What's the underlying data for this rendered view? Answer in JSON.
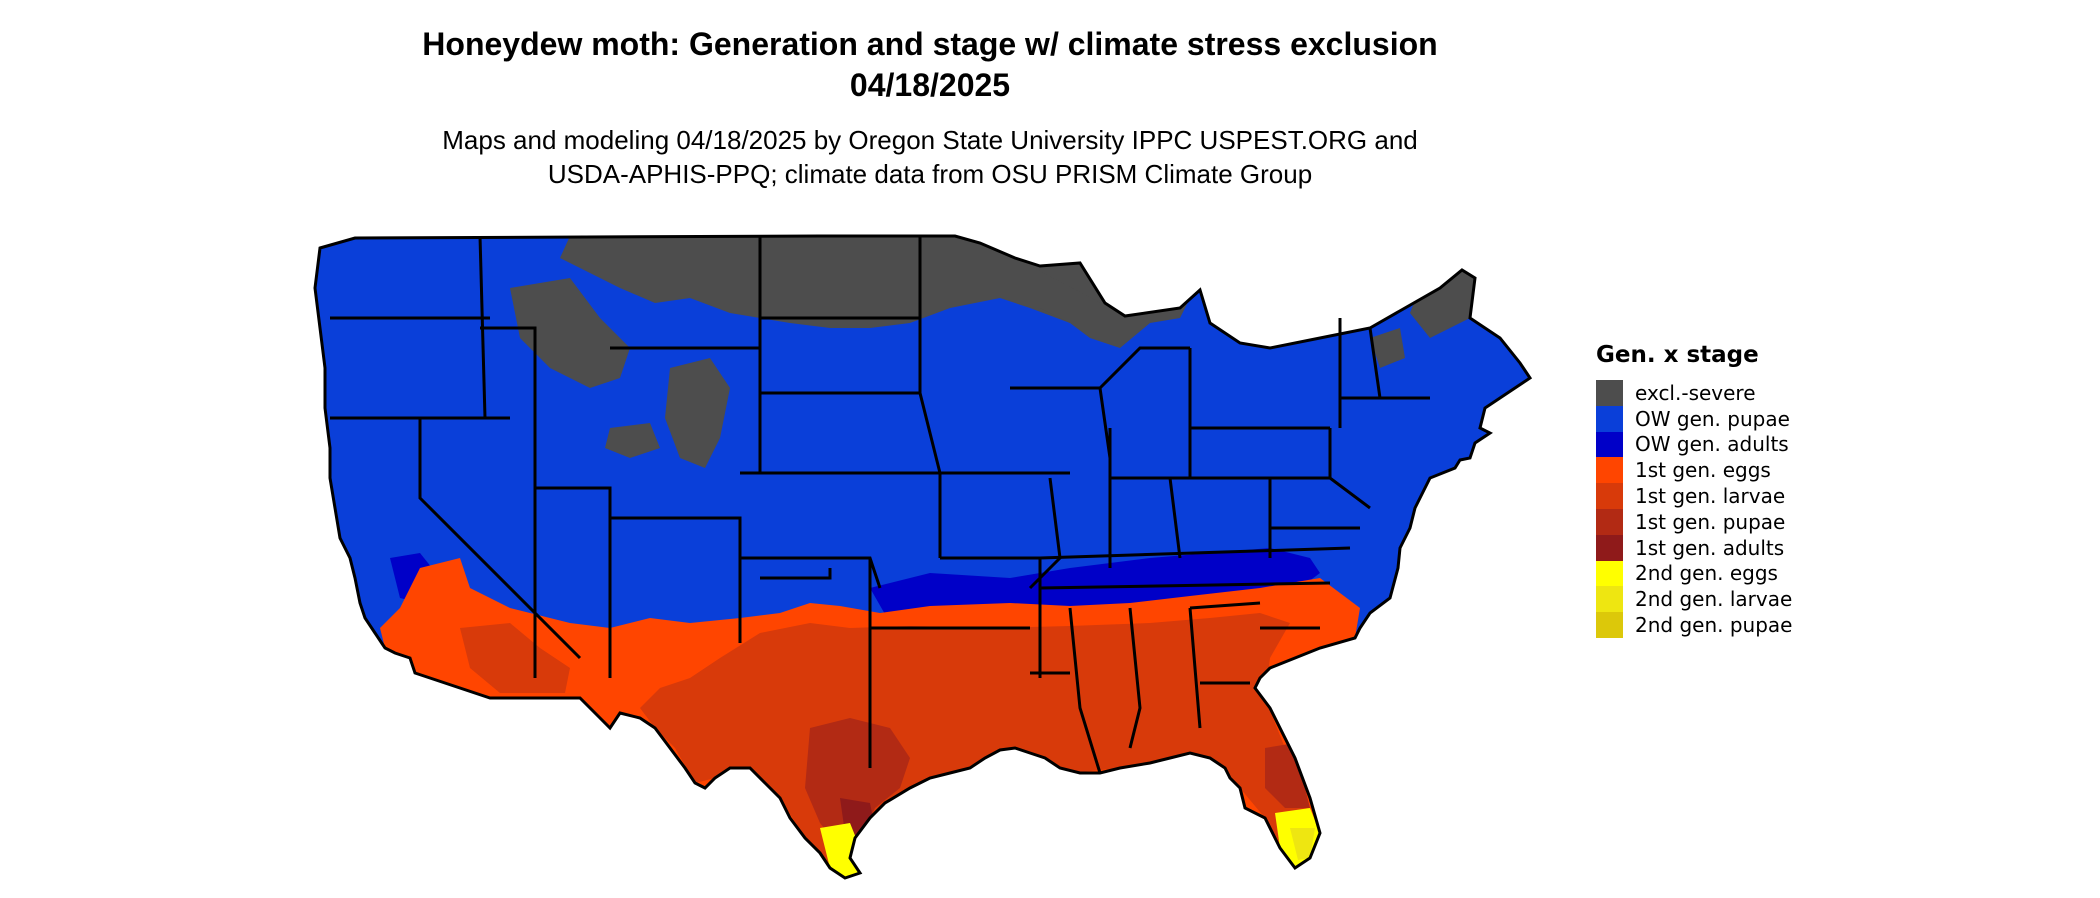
{
  "title_line1": "Honeydew moth: Generation and stage w/ climate stress exclusion",
  "title_line2": "04/18/2025",
  "subtitle_line1": "Maps and modeling 04/18/2025 by Oregon State University IPPC USPEST.ORG and",
  "subtitle_line2": "USDA-APHIS-PPQ; climate data from OSU PRISM Climate Group",
  "legend": {
    "title": "Gen. x stage",
    "items": [
      {
        "label": "excl.-severe",
        "color": "#4d4d4d"
      },
      {
        "label": "OW gen. pupae",
        "color": "#0a3fd9"
      },
      {
        "label": "OW gen. adults",
        "color": "#0000c8"
      },
      {
        "label": "1st gen. eggs",
        "color": "#ff4500"
      },
      {
        "label": "1st gen. larvae",
        "color": "#d83a0a"
      },
      {
        "label": "1st gen. pupae",
        "color": "#b22a14"
      },
      {
        "label": "1st gen. adults",
        "color": "#8f1a1a"
      },
      {
        "label": "2nd gen. eggs",
        "color": "#ffff00"
      },
      {
        "label": "2nd gen. larvae",
        "color": "#eee611"
      },
      {
        "label": "2nd gen. pupae",
        "color": "#dcc80a"
      }
    ]
  }
}
